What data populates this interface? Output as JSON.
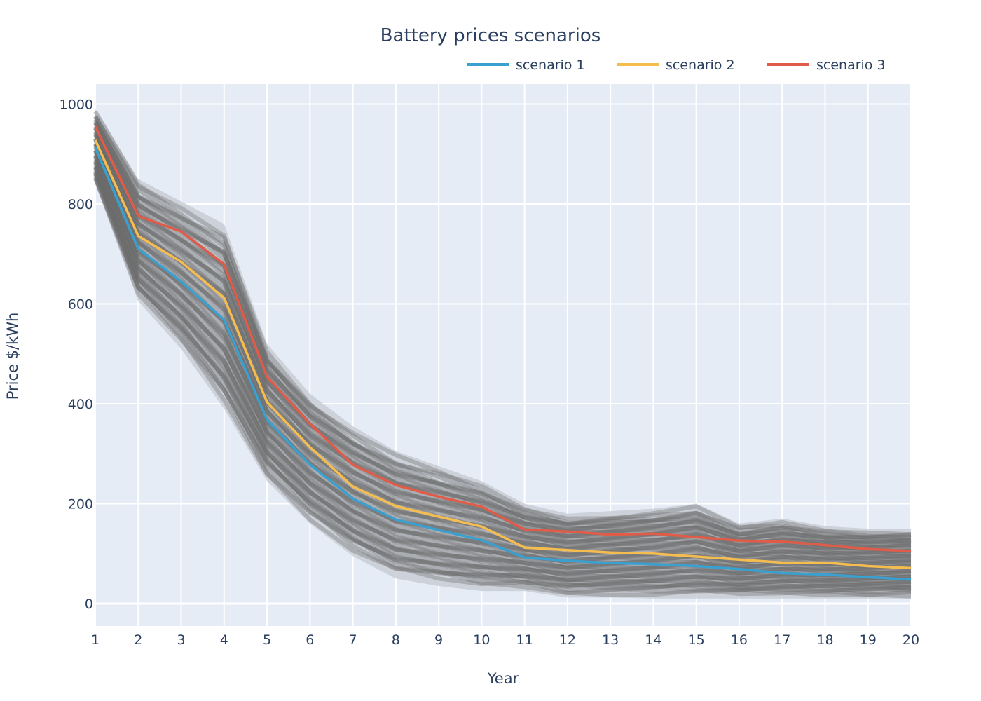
{
  "chart_data": {
    "type": "line",
    "title": "Battery prices scenarios",
    "xlabel": "Year",
    "ylabel": "Price $/kWh",
    "x": [
      1,
      2,
      3,
      4,
      5,
      6,
      7,
      8,
      9,
      10,
      11,
      12,
      13,
      14,
      15,
      16,
      17,
      18,
      19,
      20
    ],
    "xlim": [
      1,
      20
    ],
    "ylim": [
      -45,
      1040
    ],
    "yticks": [
      0,
      200,
      400,
      600,
      800,
      1000
    ],
    "grid": true,
    "legend_position": "top-right",
    "plot_background": "#e5ecf6",
    "simulation_band": {
      "color": "#6b6b6b",
      "upper": [
        990,
        850,
        805,
        760,
        520,
        420,
        355,
        305,
        275,
        245,
        200,
        180,
        185,
        190,
        200,
        160,
        170,
        155,
        150,
        150
      ],
      "lower": [
        840,
        605,
        510,
        390,
        245,
        160,
        95,
        50,
        35,
        25,
        25,
        12,
        12,
        10,
        10,
        10,
        10,
        10,
        10,
        10
      ]
    },
    "series": [
      {
        "name": "scenario 1",
        "color": "#3aa0d0",
        "values": [
          913,
          710,
          645,
          568,
          368,
          278,
          210,
          168,
          147,
          127,
          92,
          86,
          81,
          79,
          75,
          69,
          61,
          58,
          53,
          48
        ]
      },
      {
        "name": "scenario 2",
        "color": "#f5bd4f",
        "values": [
          928,
          736,
          684,
          612,
          403,
          313,
          234,
          195,
          174,
          154,
          112,
          107,
          102,
          100,
          94,
          88,
          82,
          82,
          75,
          71
        ]
      },
      {
        "name": "scenario 3",
        "color": "#e05c49",
        "values": [
          955,
          776,
          745,
          679,
          454,
          360,
          278,
          237,
          214,
          194,
          148,
          144,
          138,
          140,
          133,
          126,
          124,
          117,
          109,
          105
        ]
      }
    ]
  }
}
